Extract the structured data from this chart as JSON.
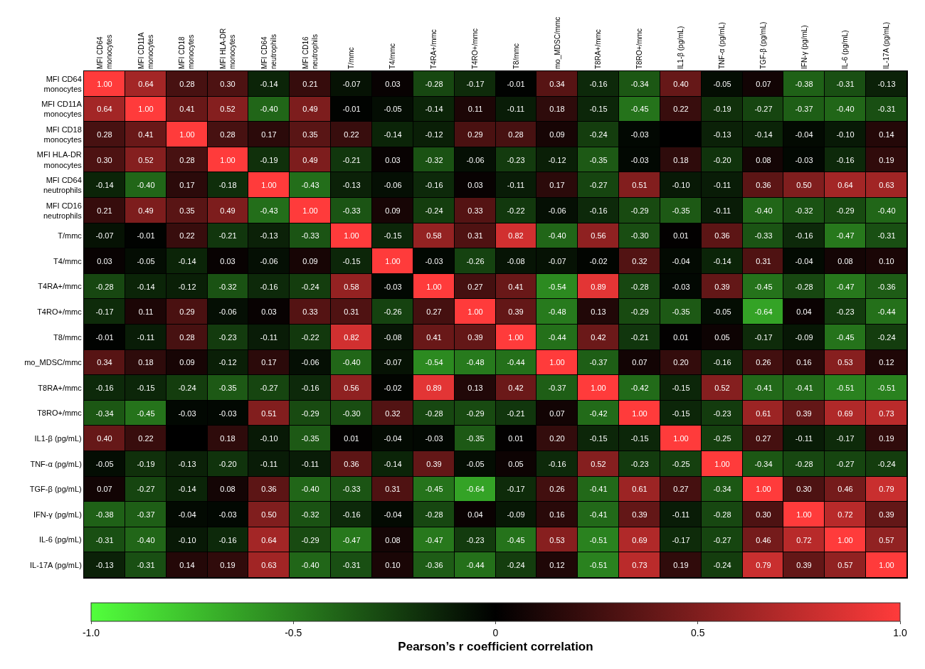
{
  "chart_data": {
    "type": "heatmap",
    "clabel": "Pearson’s r coefficient correlation",
    "categories": [
      "MFI CD64 monocytes",
      "MFI CD11A monocytes",
      "MFI CD18 monocytes",
      "MFI HLA-DR monocytes",
      "MFI CD64 neutrophils",
      "MFI CD16 neutrophils",
      "T/mmc",
      "T4/mmc",
      "T4RA+/mmc",
      "T4RO+/mmc",
      "T8/mmc",
      "mo_MDSC/mmc",
      "T8RA+/mmc",
      "T8RO+/mmc",
      "IL1-β (pg/mL)",
      "TNF-α (pg/mL)",
      "TGF-β (pg/mL)",
      "IFN-γ (pg/mL)",
      "IL-6 (pg/mL)",
      "IL-17A (pg/mL)"
    ],
    "y_categories": [
      "MFI CD64 monocytes",
      "MFI CD11A monocytes",
      "MFI CD18 monocytes",
      "MFI HLA-DR monocytes",
      "MFI CD64 neutrophils",
      "MFI CD16 neutrophils",
      "T/mmc",
      "T4/mmc",
      "T4RA+/mmc",
      "T4RO+/mmc",
      "T8/mmc",
      "mo_MDSC/mmc",
      "T8RA+/mmc",
      "T8RO+/mmc",
      "IL1-β (pg/mL)",
      "TNF-α (pg/mL)",
      "TGF-β (pg/mL)",
      "IFN-γ (pg/mL)",
      "IL-6 (pg/mL)",
      "IL-17A (pg/mL)"
    ],
    "cells": [
      [
        1.0,
        0.64,
        0.28,
        0.3,
        -0.14,
        0.21,
        -0.07,
        0.03,
        -0.28,
        -0.17,
        -0.01,
        0.34,
        -0.16,
        -0.34,
        0.4,
        -0.05,
        0.07,
        -0.38,
        -0.31,
        -0.13
      ],
      [
        0.64,
        1.0,
        0.41,
        0.52,
        -0.4,
        0.49,
        -0.01,
        -0.05,
        -0.14,
        0.11,
        -0.11,
        0.18,
        -0.15,
        -0.45,
        0.22,
        -0.19,
        -0.27,
        -0.37,
        -0.4,
        -0.31
      ],
      [
        0.28,
        0.41,
        1.0,
        0.28,
        0.17,
        0.35,
        0.22,
        -0.14,
        -0.12,
        0.29,
        0.28,
        0.09,
        -0.24,
        -0.03,
        null,
        -0.13,
        -0.14,
        -0.04,
        -0.1,
        0.14
      ],
      [
        0.3,
        0.52,
        0.28,
        1.0,
        -0.19,
        0.49,
        -0.21,
        0.03,
        -0.32,
        -0.06,
        -0.23,
        -0.12,
        -0.35,
        -0.03,
        0.18,
        -0.2,
        0.08,
        -0.03,
        -0.16,
        0.19
      ],
      [
        -0.14,
        -0.4,
        0.17,
        -0.18,
        1.0,
        -0.43,
        -0.13,
        -0.06,
        -0.16,
        0.03,
        -0.11,
        0.17,
        -0.27,
        0.51,
        -0.1,
        -0.11,
        0.36,
        0.5,
        0.64,
        0.63
      ],
      [
        0.21,
        0.49,
        0.35,
        0.49,
        -0.43,
        1.0,
        -0.33,
        0.09,
        -0.24,
        0.33,
        -0.22,
        -0.06,
        -0.16,
        -0.29,
        -0.35,
        -0.11,
        -0.4,
        -0.32,
        -0.29,
        -0.4
      ],
      [
        -0.07,
        -0.01,
        0.22,
        -0.21,
        -0.13,
        -0.33,
        1.0,
        -0.15,
        0.58,
        0.31,
        0.82,
        -0.4,
        0.56,
        -0.3,
        0.01,
        0.36,
        -0.33,
        -0.16,
        -0.47,
        -0.31
      ],
      [
        0.03,
        -0.05,
        -0.14,
        0.03,
        -0.06,
        0.09,
        -0.15,
        1.0,
        -0.03,
        -0.26,
        -0.08,
        -0.07,
        -0.02,
        0.32,
        -0.04,
        -0.14,
        0.31,
        -0.04,
        0.08,
        0.1
      ],
      [
        -0.28,
        -0.14,
        -0.12,
        -0.32,
        -0.16,
        -0.24,
        0.58,
        -0.03,
        1.0,
        0.27,
        0.41,
        -0.54,
        0.89,
        -0.28,
        -0.03,
        0.39,
        -0.45,
        -0.28,
        -0.47,
        -0.36
      ],
      [
        -0.17,
        0.11,
        0.29,
        -0.06,
        0.03,
        0.33,
        0.31,
        -0.26,
        0.27,
        1.0,
        0.39,
        -0.48,
        0.13,
        -0.29,
        -0.35,
        -0.05,
        -0.64,
        0.04,
        -0.23,
        -0.44
      ],
      [
        -0.01,
        -0.11,
        0.28,
        -0.23,
        -0.11,
        -0.22,
        0.82,
        -0.08,
        0.41,
        0.39,
        1.0,
        -0.44,
        0.42,
        -0.21,
        0.01,
        0.05,
        -0.17,
        -0.09,
        -0.45,
        -0.24
      ],
      [
        0.34,
        0.18,
        0.09,
        -0.12,
        0.17,
        -0.06,
        -0.4,
        -0.07,
        -0.54,
        -0.48,
        -0.44,
        1.0,
        -0.37,
        0.07,
        0.2,
        -0.16,
        0.26,
        0.16,
        0.53,
        0.12
      ],
      [
        -0.16,
        -0.15,
        -0.24,
        -0.35,
        -0.27,
        -0.16,
        0.56,
        -0.02,
        0.89,
        0.13,
        0.42,
        -0.37,
        1.0,
        -0.42,
        -0.15,
        0.52,
        -0.41,
        -0.41,
        -0.51,
        -0.51
      ],
      [
        -0.34,
        -0.45,
        -0.03,
        -0.03,
        0.51,
        -0.29,
        -0.3,
        0.32,
        -0.28,
        -0.29,
        -0.21,
        0.07,
        -0.42,
        1.0,
        -0.15,
        -0.23,
        0.61,
        0.39,
        0.69,
        0.73
      ],
      [
        0.4,
        0.22,
        null,
        0.18,
        -0.1,
        -0.35,
        0.01,
        -0.04,
        -0.03,
        -0.35,
        0.01,
        0.2,
        -0.15,
        -0.15,
        1.0,
        -0.25,
        0.27,
        -0.11,
        -0.17,
        0.19
      ],
      [
        -0.05,
        -0.19,
        -0.13,
        -0.2,
        -0.11,
        -0.11,
        0.36,
        -0.14,
        0.39,
        -0.05,
        0.05,
        -0.16,
        0.52,
        -0.23,
        -0.25,
        1.0,
        -0.34,
        -0.28,
        -0.27,
        -0.24
      ],
      [
        0.07,
        -0.27,
        -0.14,
        0.08,
        0.36,
        -0.4,
        -0.33,
        0.31,
        -0.45,
        -0.64,
        -0.17,
        0.26,
        -0.41,
        0.61,
        0.27,
        -0.34,
        1.0,
        0.3,
        0.46,
        0.79
      ],
      [
        -0.38,
        -0.37,
        -0.04,
        -0.03,
        0.5,
        -0.32,
        -0.16,
        -0.04,
        -0.28,
        0.04,
        -0.09,
        0.16,
        -0.41,
        0.39,
        -0.11,
        -0.28,
        0.3,
        1.0,
        0.72,
        0.39
      ],
      [
        -0.31,
        -0.4,
        -0.1,
        -0.16,
        0.64,
        -0.29,
        -0.47,
        0.08,
        -0.47,
        -0.23,
        -0.45,
        0.53,
        -0.51,
        0.69,
        -0.17,
        -0.27,
        0.46,
        0.72,
        1.0,
        0.57
      ],
      [
        -0.13,
        -0.31,
        0.14,
        0.19,
        0.63,
        -0.4,
        -0.31,
        0.1,
        -0.36,
        -0.44,
        -0.24,
        0.12,
        -0.51,
        0.73,
        0.19,
        -0.24,
        0.79,
        0.39,
        0.57,
        1.0
      ]
    ],
    "cell_labels": [
      [
        "1.00",
        "0.64",
        "0.28",
        "0.30",
        "-0.14",
        "0.21",
        "-0.07",
        "0.03",
        "-0.28",
        "-0.17",
        "-0.01",
        "0.34",
        "-0.16",
        "-0.34",
        "0.40",
        "-0.05",
        "0.07",
        "-0.38",
        "-0.31",
        "-0.13"
      ],
      [
        "0.64",
        "1.00",
        "0.41",
        "0.52",
        "-0.40",
        "0.49",
        "-0.01",
        "-0.05",
        "-0.14",
        "0.11",
        "-0.11",
        "0.18",
        "-0.15",
        "-0.45",
        "0.22",
        "-0.19",
        "-0.27",
        "-0.37",
        "-0.40",
        "-0.31"
      ],
      [
        "0.28",
        "0.41",
        "1.00",
        "0.28",
        "0.17",
        "0.35",
        "0.22",
        "-0.14",
        "-0.12",
        "0.29",
        "0.28",
        "0.09",
        "-0.24",
        "-0.03",
        null,
        "-0.13",
        "-0.14",
        "-0.04",
        "-0.10",
        "0.14"
      ],
      [
        "0.30",
        "0.52",
        "0.28",
        "1.00",
        "-0.19",
        "0.49",
        "-0.21",
        "0.03",
        "-0.32",
        "-0.06",
        "-0.23",
        "-0.12",
        "-0.35",
        "-0.03",
        "0.18",
        "-0.20",
        "0.08",
        "-0.03",
        "-0.16",
        "0.19"
      ],
      [
        "-0.14",
        "-0.40",
        "0.17",
        "-0.18",
        "1.00",
        "-0.43",
        "-0.13",
        "-0.06",
        "-0.16",
        "0.03",
        "-0.11",
        "0.17",
        "-0.27",
        "0.51",
        "-0.10",
        "-0.11",
        "0.36",
        "0.50",
        "0.64",
        "0.63"
      ],
      [
        "0.21",
        "0.49",
        "0.35",
        "0.49",
        "-0.43",
        "1.00",
        "-0.33",
        "0.09",
        "-0.24",
        "0.33",
        "-0.22",
        "-0.06",
        "-0.16",
        "-0.29",
        "-0.35",
        "-0.11",
        "-0.40",
        "-0.32",
        "-0.29",
        "-0.40"
      ],
      [
        "-0.07",
        "-0.01",
        "0.22",
        "-0.21",
        "-0.13",
        "-0.33",
        "1.00",
        "-0.15",
        "0.58",
        "0.31",
        "0.82",
        "-0.40",
        "0.56",
        "-0.30",
        "0.01",
        "0.36",
        "-0.33",
        "-0.16",
        "-0.47",
        "-0.31"
      ],
      [
        "0.03",
        "-0.05",
        "-0.14",
        "0.03",
        "-0.06",
        "0.09",
        "-0.15",
        "1.00",
        "-0.03",
        "-0.26",
        "-0.08",
        "-0.07",
        "-0.02",
        "0.32",
        "-0.04",
        "-0.14",
        "0.31",
        "-0.04",
        "0.08",
        "0.10"
      ],
      [
        "-0.28",
        "-0.14",
        "-0.12",
        "-0.32",
        "-0.16",
        "-0.24",
        "0.58",
        "-0.03",
        "1.00",
        "0.27",
        "0.41",
        "-0.54",
        "0.89",
        "-0.28",
        "-0.03",
        "0.39",
        "-0.45",
        "-0.28",
        "-0.47",
        "-0.36"
      ],
      [
        "-0.17",
        "0.11",
        "0.29",
        "-0.06",
        "0.03",
        "0.33",
        "0.31",
        "-0.26",
        "0.27",
        "1.00",
        "0.39",
        "-0.48",
        "0.13",
        "-0.29",
        "-0.35",
        "-0.05",
        "-0.64",
        "0.04",
        "-0.23",
        "-0.44"
      ],
      [
        "-0.01",
        "-0.11",
        "0.28",
        "-0.23",
        "-0.11",
        "-0.22",
        "0.82",
        "-0.08",
        "0.41",
        "0.39",
        "1.00",
        "-0.44",
        "0.42",
        "-0.21",
        "0.01",
        "0.05",
        "-0.17",
        "-0.09",
        "-0.45",
        "-0.24"
      ],
      [
        "0.34",
        "0.18",
        "0.09",
        "-0.12",
        "0.17",
        "-0.06",
        "-0.40",
        "-0.07",
        "-0.54",
        "-0.48",
        "-0.44",
        "1.00",
        "-0.37",
        "0.07",
        "0.20",
        "-0.16",
        "0.26",
        "0.16",
        "0.53",
        "0.12"
      ],
      [
        "-0.16",
        "-0.15",
        "-0.24",
        "-0.35",
        "-0.27",
        "-0.16",
        "0.56",
        "-0.02",
        "0.89",
        "0.13",
        "0.42",
        "-0.37",
        "1.00",
        "-0.42",
        "-0.15",
        "0.52",
        "-0.41",
        "-0.41",
        "-0.51",
        "-0.51"
      ],
      [
        "-0.34",
        "-0.45",
        "-0.03",
        "-0.03",
        "0.51",
        "-0.29",
        "-0.30",
        "0.32",
        "-0.28",
        "-0.29",
        "-0.21",
        "0.07",
        "-0.42",
        "1.00",
        "-0.15",
        "-0.23",
        "0.61",
        "0.39",
        "0.69",
        "0.73"
      ],
      [
        "0.40",
        "0.22",
        null,
        "0.18",
        "-0.10",
        "-0.35",
        "0.01",
        "-0.04",
        "-0.03",
        "-0.35",
        "0.01",
        "0.20",
        "-0.15",
        "-0.15",
        "1.00",
        "-0.25",
        "0.27",
        "-0.11",
        "-0.17",
        "0.19"
      ],
      [
        "-0.05",
        "-0.19",
        "-0.13",
        "-0.20",
        "-0.11",
        "-0.11",
        "0.36",
        "-0.14",
        "0.39",
        "-0.05",
        "0.05",
        "-0.16",
        "0.52",
        "-0.23",
        "-0.25",
        "1.00",
        "-0.34",
        "-0.28",
        "-0.27",
        "-0.24"
      ],
      [
        "0.07",
        "-0.27",
        "-0.14",
        "0.08",
        "0.36",
        "-0.40",
        "-0.33",
        "0.31",
        "-0.45",
        "-0.64",
        "-0.17",
        "0.26",
        "-0.41",
        "0.61",
        "0.27",
        "-0.34",
        "1.00",
        "0.30",
        "0.46",
        "0.79"
      ],
      [
        "-0.38",
        "-0.37",
        "-0.04",
        "-0.03",
        "0.50",
        "-0.32",
        "-0.16",
        "-0.04",
        "-0.28",
        "0.04",
        "-0.09",
        "0.16",
        "-0.41",
        "0.39",
        "-0.11",
        "-0.28",
        "0.30",
        "1.00",
        "0.72",
        "0.39"
      ],
      [
        "-0.31",
        "-0.40",
        "-0.10",
        "-0.16",
        "0.64",
        "-0.29",
        "-0.47",
        "0.08",
        "-0.47",
        "-0.23",
        "-0.45",
        "0.53",
        "-0.51",
        "0.69",
        "-0.17",
        "-0.27",
        "0.46",
        "0.72",
        "1.00",
        "0.57"
      ],
      [
        "-0.13",
        "-0.31",
        "0.14",
        "0.19",
        "0.63",
        "-0.40",
        "-0.31",
        "0.10",
        "-0.36",
        "-0.44",
        "-0.24",
        "0.12",
        "-0.51",
        "0.73",
        "0.19",
        "-0.24",
        "0.79",
        "0.39",
        "0.57",
        "1.00"
      ]
    ],
    "clim": [
      -1.0,
      1.0
    ],
    "cticks": [
      {
        "value": -1.0,
        "label": "-1.0"
      },
      {
        "value": -0.5,
        "label": "-0.5"
      },
      {
        "value": 0,
        "label": "0"
      },
      {
        "value": 0.5,
        "label": "0.5"
      },
      {
        "value": 1.0,
        "label": "1.0"
      }
    ]
  }
}
